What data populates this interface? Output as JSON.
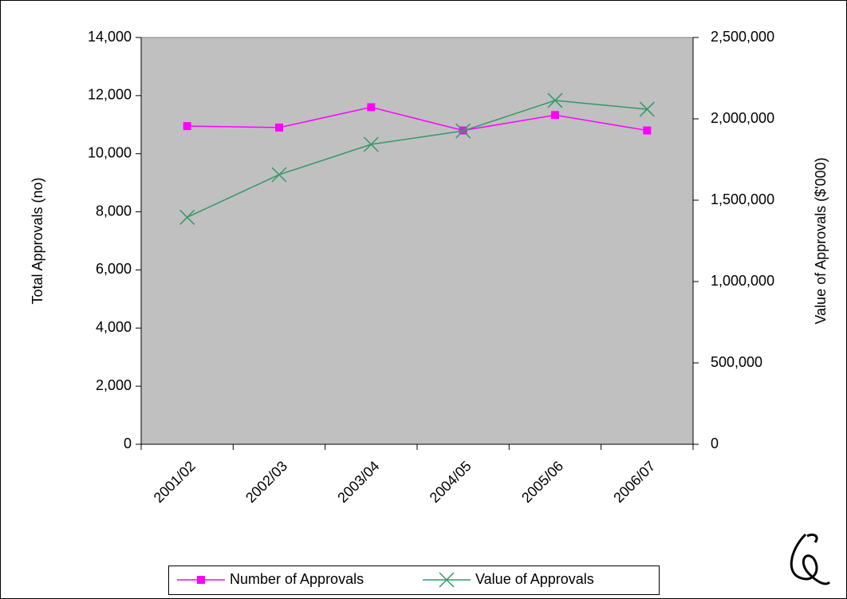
{
  "chart_data": {
    "type": "line",
    "categories": [
      "2001/02",
      "2002/03",
      "2003/04",
      "2004/05",
      "2005/06",
      "2006/07"
    ],
    "series": [
      {
        "name": "Number of Approvals",
        "color": "#ff00ff",
        "marker": "square",
        "values": [
          10950,
          10900,
          11600,
          10800,
          11330,
          10800
        ]
      },
      {
        "name": "Value of Approvals",
        "color": "#339966",
        "marker": "x",
        "axis": "y2",
        "values": [
          1395000,
          1657000,
          1843000,
          1926000,
          2113000,
          2059000
        ]
      }
    ],
    "ylabel": "Total Approvals (no)",
    "y2label": "Value of Approvals ($'000)",
    "ylim": [
      0,
      14000
    ],
    "yticks": [
      0,
      {
        "value": 2000,
        "label": "2,000"
      },
      {
        "value": 4000,
        "label": "4,000"
      },
      {
        "value": 6000,
        "label": "6,000"
      },
      {
        "value": 8000,
        "label": "8,000"
      },
      {
        "value": 10000,
        "label": "10,000"
      },
      {
        "value": 12000,
        "label": "12,000"
      },
      {
        "value": 14000,
        "label": "14,000"
      }
    ],
    "y2lim": [
      0,
      2500000
    ],
    "y2ticks": [
      0,
      {
        "value": 500000,
        "label": "500,000"
      },
      {
        "value": 1000000,
        "label": "1,000,000"
      },
      {
        "value": 1500000,
        "label": "1,500,000"
      },
      {
        "value": 2000000,
        "label": "2,000,000"
      },
      {
        "value": 2500000,
        "label": "2,500,000"
      }
    ],
    "grid": false,
    "legend": "bottom"
  }
}
